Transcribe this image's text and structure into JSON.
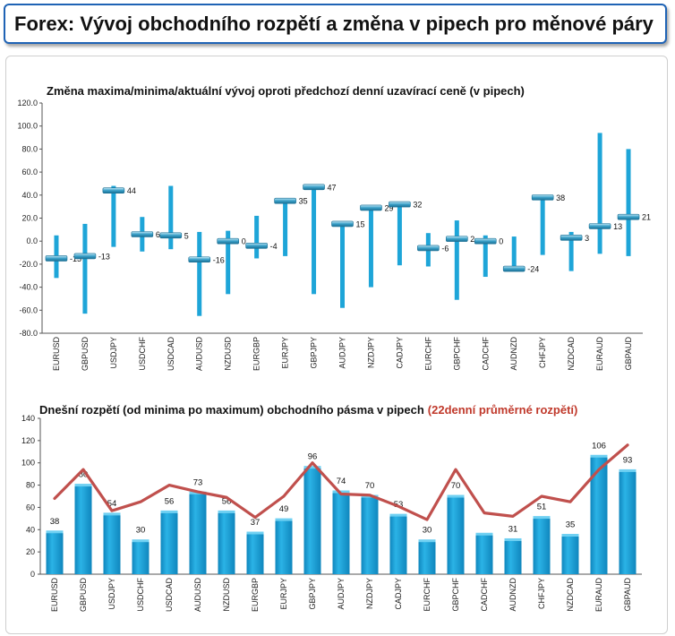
{
  "header": {
    "title": "Forex: Vývoj obchodního rozpětí a změna v pipech pro měnové páry"
  },
  "colors": {
    "bar": "#1ea5d8",
    "bar_dark": "#0f7fb0",
    "marker": "#3aa0c8",
    "line": "#c0504d",
    "border": "#1f63b5"
  },
  "chart_data": [
    {
      "type": "range",
      "title": "Změna maxima/minima/aktuální vývoj oproti předchozí denní uzavírací ceně (v pipech)",
      "ylim": [
        -80,
        120
      ],
      "yticks": [
        "120.0",
        "100.0",
        "80.0",
        "60.0",
        "40.0",
        "20.0",
        "0.0",
        "-20.0",
        "-40.0",
        "-60.0",
        "-80.0"
      ],
      "categories": [
        "EURUSD",
        "GBPUSD",
        "USDJPY",
        "USDCHF",
        "USDCAD",
        "AUDUSD",
        "NZDUSD",
        "EURGBP",
        "EURJPY",
        "GBPJPY",
        "AUDJPY",
        "NZDJPY",
        "CADJPY",
        "EURCHF",
        "GBPCHF",
        "CADCHF",
        "AUDNZD",
        "CHFJPY",
        "NZDCAD",
        "EURAUD",
        "GBPAUD"
      ],
      "high": [
        5,
        15,
        48,
        21,
        48,
        8,
        9,
        22,
        36,
        48,
        17,
        30,
        33,
        7,
        18,
        5,
        4,
        40,
        8,
        94,
        80
      ],
      "low": [
        -32,
        -63,
        -5,
        -9,
        -7,
        -65,
        -46,
        -15,
        -13,
        -46,
        -58,
        -40,
        -21,
        -22,
        -51,
        -31,
        -25,
        -12,
        -26,
        -11,
        -13
      ],
      "current": [
        -15,
        -13,
        44,
        6,
        5,
        -16,
        0,
        -4,
        35,
        47,
        15,
        29,
        32,
        -6,
        2,
        0,
        -24,
        38,
        3,
        13,
        21
      ],
      "labels": [
        "-15",
        "-13",
        "44",
        "6",
        "5",
        "-16",
        "0",
        "-4",
        "35",
        "47",
        "15",
        "29",
        "32",
        "-6",
        "2",
        "0",
        "-24",
        "38",
        "3",
        "13",
        "21"
      ]
    },
    {
      "type": "bar",
      "title": "Dnešní rozpětí (od minima po maximum) obchodního pásma v pipech",
      "title_red": "(22denní průměrné rozpětí)",
      "ylim": [
        0,
        140
      ],
      "yticks": [
        "140",
        "120",
        "100",
        "80",
        "60",
        "40",
        "20",
        "0"
      ],
      "categories": [
        "EURUSD",
        "GBPUSD",
        "USDJPY",
        "USDCHF",
        "USDCAD",
        "AUDUSD",
        "NZDUSD",
        "EURGBP",
        "EURJPY",
        "GBPJPY",
        "AUDJPY",
        "NZDJPY",
        "CADJPY",
        "EURCHF",
        "GBPCHF",
        "CADCHF",
        "AUDNZD",
        "CHFJPY",
        "NZDCAD",
        "EURAUD",
        "GBPAUD"
      ],
      "values": [
        38,
        80,
        54,
        30,
        56,
        73,
        56,
        37,
        49,
        96,
        74,
        70,
        53,
        30,
        70,
        36,
        31,
        51,
        35,
        106,
        93
      ],
      "labels": [
        "38",
        "80",
        "54",
        "30",
        "56",
        "73",
        "56",
        "37",
        "49",
        "96",
        "74",
        "70",
        "53",
        "30",
        "70",
        "",
        "31",
        "51",
        "35",
        "106",
        "93"
      ],
      "average": [
        68,
        94,
        57,
        65,
        80,
        74,
        69,
        51,
        70,
        100,
        72,
        71,
        61,
        49,
        94,
        55,
        52,
        70,
        65,
        94,
        116
      ]
    }
  ]
}
